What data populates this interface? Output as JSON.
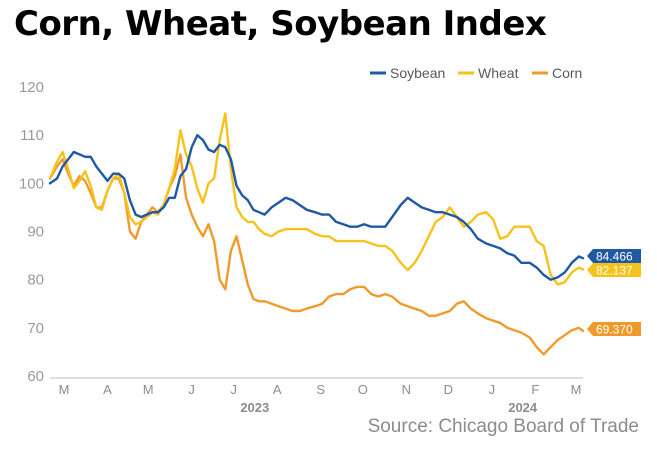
{
  "chart_data": {
    "type": "line",
    "title": "Corn, Wheat, Soybean Index",
    "source": "Source: Chicago Board of Trade",
    "ylim": [
      60,
      120
    ],
    "y_ticks": [
      "60",
      "70",
      "80",
      "90",
      "100",
      "110",
      "120"
    ],
    "x_start": "2023-02-24",
    "x_end": "2024-03-10",
    "x_ticks": [
      {
        "label": "M",
        "date": "2023-03-06"
      },
      {
        "label": "A",
        "date": "2023-04-06"
      },
      {
        "label": "M",
        "date": "2023-05-05"
      },
      {
        "label": "J",
        "date": "2023-06-05"
      },
      {
        "label": "J",
        "date": "2023-07-05"
      },
      {
        "label": "A",
        "date": "2023-08-05"
      },
      {
        "label": "S",
        "date": "2023-09-05"
      },
      {
        "label": "O",
        "date": "2023-10-05"
      },
      {
        "label": "N",
        "date": "2023-11-05"
      },
      {
        "label": "D",
        "date": "2023-12-05"
      },
      {
        "label": "J",
        "date": "2024-01-05"
      },
      {
        "label": "F",
        "date": "2024-02-05"
      },
      {
        "label": "M",
        "date": "2024-03-05"
      }
    ],
    "year_labels": [
      {
        "label": "2023",
        "date": "2023-07-20"
      },
      {
        "label": "2024",
        "date": "2024-01-27"
      }
    ],
    "grid": false,
    "legend": "top-right",
    "series": [
      {
        "name": "Soybean",
        "color": "#1f58a3",
        "end_label": "84.466",
        "x": [
          "2023-02-24",
          "2023-03-01",
          "2023-03-05",
          "2023-03-09",
          "2023-03-13",
          "2023-03-17",
          "2023-03-21",
          "2023-03-25",
          "2023-03-29",
          "2023-04-02",
          "2023-04-06",
          "2023-04-10",
          "2023-04-14",
          "2023-04-18",
          "2023-04-22",
          "2023-04-26",
          "2023-04-30",
          "2023-05-04",
          "2023-05-08",
          "2023-05-12",
          "2023-05-16",
          "2023-05-20",
          "2023-05-24",
          "2023-05-28",
          "2023-06-01",
          "2023-06-05",
          "2023-06-09",
          "2023-06-13",
          "2023-06-17",
          "2023-06-21",
          "2023-06-25",
          "2023-06-29",
          "2023-07-03",
          "2023-07-07",
          "2023-07-11",
          "2023-07-15",
          "2023-07-19",
          "2023-07-23",
          "2023-07-27",
          "2023-08-01",
          "2023-08-06",
          "2023-08-11",
          "2023-08-16",
          "2023-08-21",
          "2023-08-26",
          "2023-09-01",
          "2023-09-06",
          "2023-09-11",
          "2023-09-16",
          "2023-09-21",
          "2023-09-26",
          "2023-10-01",
          "2023-10-06",
          "2023-10-11",
          "2023-10-16",
          "2023-10-21",
          "2023-10-26",
          "2023-11-01",
          "2023-11-06",
          "2023-11-11",
          "2023-11-16",
          "2023-11-21",
          "2023-11-26",
          "2023-12-01",
          "2023-12-06",
          "2023-12-11",
          "2023-12-16",
          "2023-12-21",
          "2023-12-26",
          "2024-01-01",
          "2024-01-06",
          "2024-01-11",
          "2024-01-16",
          "2024-01-21",
          "2024-01-26",
          "2024-02-01",
          "2024-02-06",
          "2024-02-11",
          "2024-02-16",
          "2024-02-21",
          "2024-02-26",
          "2024-03-02",
          "2024-03-07",
          "2024-03-10"
        ],
        "y": [
          100,
          101,
          103.5,
          105,
          106.5,
          106,
          105.5,
          105.5,
          103.5,
          102,
          100.5,
          102,
          102,
          101,
          96.5,
          93.5,
          93,
          93.5,
          94,
          94,
          95,
          97,
          97,
          101.5,
          103,
          107.5,
          110,
          109,
          107,
          106.5,
          108,
          107.5,
          105,
          99.5,
          97.5,
          96.5,
          94.5,
          94,
          93.5,
          95,
          96,
          97,
          96.5,
          95.5,
          94.5,
          94,
          93.5,
          93.5,
          92,
          91.5,
          91,
          91,
          91.5,
          91,
          91,
          91,
          93,
          95.5,
          97,
          96,
          95,
          94.5,
          94,
          94,
          93.5,
          93,
          92,
          90.5,
          88.5,
          87.5,
          87,
          86.5,
          85.5,
          85,
          83.5,
          83.5,
          82.5,
          81,
          80,
          80.5,
          81.5,
          83.5,
          84.8,
          84.466
        ]
      },
      {
        "name": "Wheat",
        "color": "#f6c21c",
        "end_label": "82.137",
        "x": [
          "2023-02-24",
          "2023-03-01",
          "2023-03-05",
          "2023-03-09",
          "2023-03-13",
          "2023-03-17",
          "2023-03-21",
          "2023-03-25",
          "2023-03-29",
          "2023-04-02",
          "2023-04-06",
          "2023-04-10",
          "2023-04-14",
          "2023-04-18",
          "2023-04-22",
          "2023-04-26",
          "2023-04-30",
          "2023-05-04",
          "2023-05-08",
          "2023-05-12",
          "2023-05-16",
          "2023-05-20",
          "2023-05-24",
          "2023-05-28",
          "2023-06-01",
          "2023-06-05",
          "2023-06-09",
          "2023-06-13",
          "2023-06-17",
          "2023-06-21",
          "2023-06-25",
          "2023-06-29",
          "2023-07-03",
          "2023-07-07",
          "2023-07-11",
          "2023-07-15",
          "2023-07-19",
          "2023-07-23",
          "2023-07-27",
          "2023-08-01",
          "2023-08-06",
          "2023-08-11",
          "2023-08-16",
          "2023-08-21",
          "2023-08-26",
          "2023-09-01",
          "2023-09-06",
          "2023-09-11",
          "2023-09-16",
          "2023-09-21",
          "2023-09-26",
          "2023-10-01",
          "2023-10-06",
          "2023-10-11",
          "2023-10-16",
          "2023-10-21",
          "2023-10-26",
          "2023-11-01",
          "2023-11-06",
          "2023-11-11",
          "2023-11-16",
          "2023-11-21",
          "2023-11-26",
          "2023-12-01",
          "2023-12-06",
          "2023-12-11",
          "2023-12-16",
          "2023-12-21",
          "2023-12-26",
          "2024-01-01",
          "2024-01-06",
          "2024-01-11",
          "2024-01-16",
          "2024-01-21",
          "2024-01-26",
          "2024-02-01",
          "2024-02-06",
          "2024-02-11",
          "2024-02-16",
          "2024-02-21",
          "2024-02-26",
          "2024-03-02",
          "2024-03-07",
          "2024-03-10"
        ],
        "y": [
          101,
          104.5,
          106.5,
          103,
          99,
          100.5,
          102.5,
          99.5,
          95,
          94.5,
          98.5,
          101,
          102,
          98,
          93,
          91.5,
          92,
          93,
          94,
          93.5,
          95.5,
          99,
          103,
          111,
          106,
          103.5,
          99,
          96,
          100,
          101,
          109,
          114.5,
          103,
          95,
          93,
          92,
          92,
          90.5,
          89.5,
          89,
          90,
          90.5,
          90.5,
          90.5,
          90.5,
          89.5,
          89,
          89,
          88,
          88,
          88,
          88,
          88,
          87.5,
          87,
          87,
          86,
          83.5,
          82,
          83.5,
          86,
          89,
          92,
          93,
          95,
          93,
          91,
          92,
          93.5,
          94,
          92.5,
          88.5,
          89,
          91,
          91,
          91,
          88,
          87,
          81,
          79,
          79.5,
          81.5,
          82.5,
          82.137
        ]
      },
      {
        "name": "Corn",
        "color": "#f19a2c",
        "end_label": "69.370",
        "x": [
          "2023-02-24",
          "2023-03-01",
          "2023-03-05",
          "2023-03-09",
          "2023-03-13",
          "2023-03-17",
          "2023-03-21",
          "2023-03-25",
          "2023-03-29",
          "2023-04-02",
          "2023-04-06",
          "2023-04-10",
          "2023-04-14",
          "2023-04-18",
          "2023-04-22",
          "2023-04-26",
          "2023-04-30",
          "2023-05-04",
          "2023-05-08",
          "2023-05-12",
          "2023-05-16",
          "2023-05-20",
          "2023-05-24",
          "2023-05-28",
          "2023-06-01",
          "2023-06-05",
          "2023-06-09",
          "2023-06-13",
          "2023-06-17",
          "2023-06-21",
          "2023-06-25",
          "2023-06-29",
          "2023-07-03",
          "2023-07-07",
          "2023-07-11",
          "2023-07-15",
          "2023-07-19",
          "2023-07-23",
          "2023-07-27",
          "2023-08-01",
          "2023-08-06",
          "2023-08-11",
          "2023-08-16",
          "2023-08-21",
          "2023-08-26",
          "2023-09-01",
          "2023-09-06",
          "2023-09-11",
          "2023-09-16",
          "2023-09-21",
          "2023-09-26",
          "2023-10-01",
          "2023-10-06",
          "2023-10-11",
          "2023-10-16",
          "2023-10-21",
          "2023-10-26",
          "2023-11-01",
          "2023-11-06",
          "2023-11-11",
          "2023-11-16",
          "2023-11-21",
          "2023-11-26",
          "2023-12-01",
          "2023-12-06",
          "2023-12-11",
          "2023-12-16",
          "2023-12-21",
          "2023-12-26",
          "2024-01-01",
          "2024-01-06",
          "2024-01-11",
          "2024-01-16",
          "2024-01-21",
          "2024-01-26",
          "2024-02-01",
          "2024-02-06",
          "2024-02-11",
          "2024-02-16",
          "2024-02-21",
          "2024-02-26",
          "2024-03-02",
          "2024-03-07",
          "2024-03-10"
        ],
        "y": [
          101,
          103.5,
          105,
          102,
          99.5,
          101.5,
          100.5,
          98,
          95,
          95,
          98.5,
          101,
          101,
          98,
          90,
          88.5,
          92,
          93.5,
          95,
          94,
          95.5,
          99,
          101.5,
          106,
          97,
          93.5,
          91,
          89,
          91.5,
          88,
          80,
          78,
          86,
          89,
          84,
          79,
          76,
          75.5,
          75.5,
          75,
          74.5,
          74,
          73.5,
          73.5,
          74,
          74.5,
          75,
          76.5,
          77,
          77,
          78,
          78.5,
          78.5,
          77,
          76.5,
          77,
          76.5,
          75,
          74.5,
          74,
          73.5,
          72.5,
          72.5,
          73,
          73.5,
          75,
          75.5,
          74,
          73,
          72,
          71.5,
          71,
          70,
          69.5,
          69,
          68,
          66,
          64.5,
          66,
          67.5,
          68.5,
          69.5,
          70,
          69.37
        ]
      }
    ]
  }
}
